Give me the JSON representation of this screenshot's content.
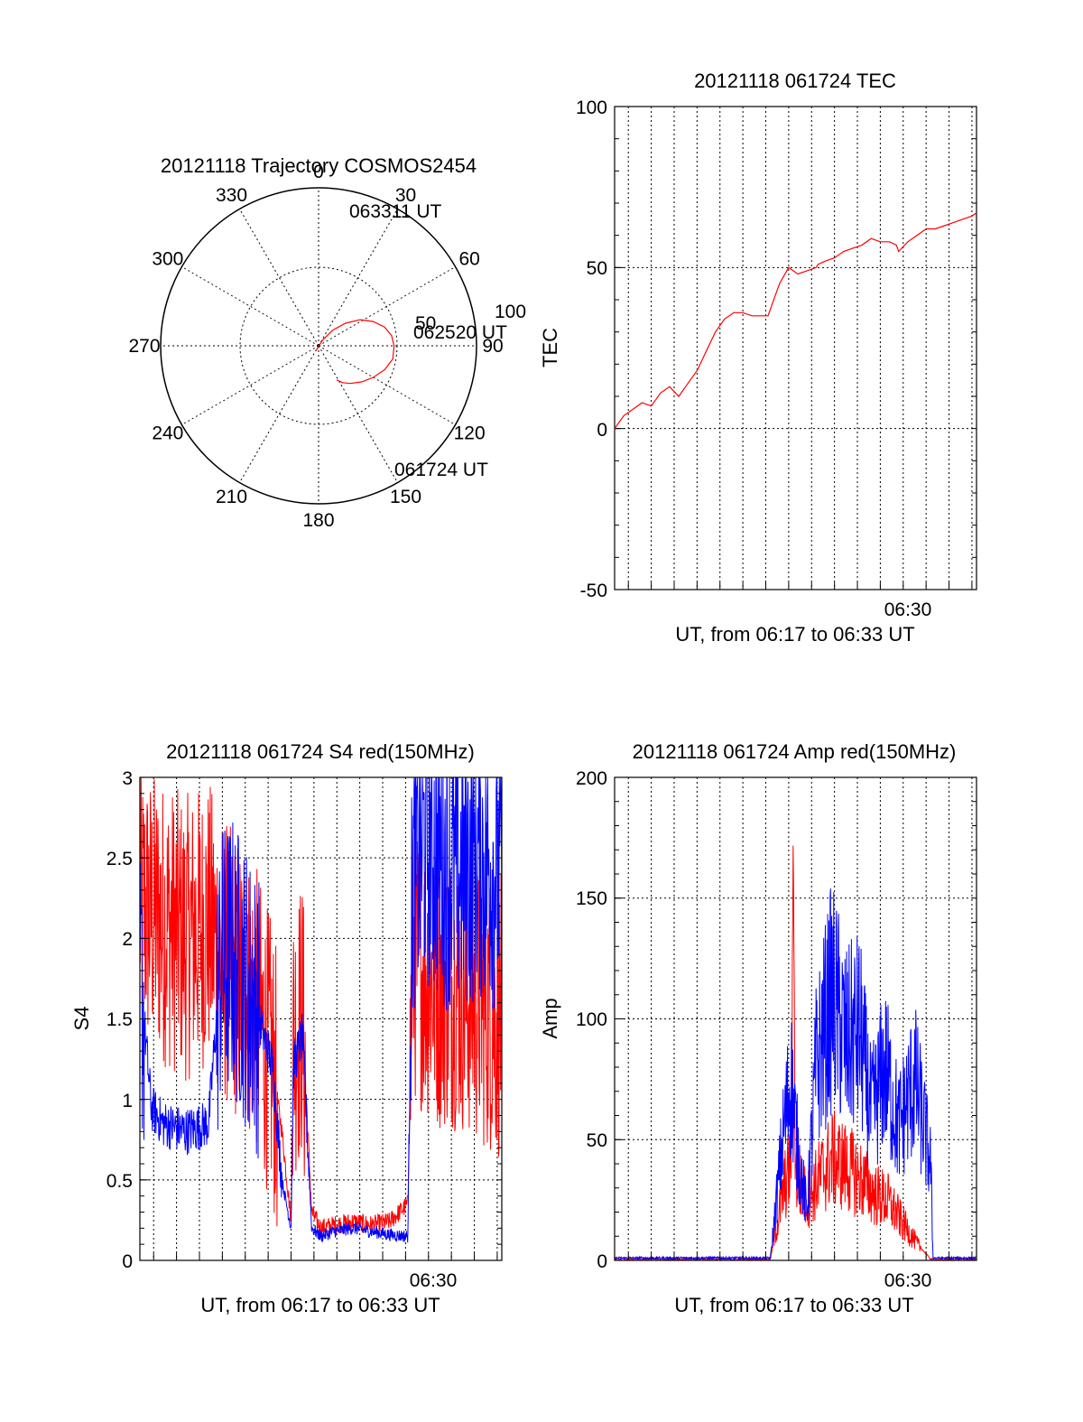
{
  "chart_data": [
    {
      "type": "polar",
      "title": "20121118 Trajectory COSMOS2454",
      "angle_labels": [
        "0",
        "30",
        "60",
        "90",
        "120",
        "150",
        "180",
        "210",
        "240",
        "270",
        "300",
        "330"
      ],
      "radial_labels": [
        "50",
        "100"
      ],
      "trajectory": [
        [
          28,
          93
        ],
        [
          35,
          86
        ],
        [
          42,
          78
        ],
        [
          50,
          70
        ],
        [
          58,
          62
        ],
        [
          66,
          56
        ],
        [
          74,
          51
        ],
        [
          82,
          48
        ],
        [
          90,
          47
        ],
        [
          100,
          47
        ],
        [
          110,
          50
        ],
        [
          120,
          54
        ],
        [
          130,
          58
        ],
        [
          140,
          62
        ],
        [
          147,
          65
        ],
        [
          152,
          68
        ]
      ],
      "annotations": [
        "063311 UT",
        "062520 UT",
        "061724 UT"
      ],
      "colors": {
        "trajectory": "#ff0000"
      }
    },
    {
      "type": "line",
      "title": "20121118 061724 TEC",
      "ylabel": "TEC",
      "xlabel": "UT, from 06:17 to 06:33 UT",
      "ylim": [
        -50,
        100
      ],
      "yticks": [
        "100",
        "50",
        "0",
        "-50"
      ],
      "xticks": [
        "06:30"
      ],
      "x_range_minutes": [
        17.4,
        33.2
      ],
      "series": [
        {
          "color": "#ff0000",
          "x": [
            17.4,
            17.8,
            18.2,
            18.6,
            19.0,
            19.4,
            19.8,
            20.2,
            20.6,
            21.0,
            21.4,
            21.8,
            22.2,
            22.6,
            23.0,
            23.4,
            23.8,
            24.1,
            24.6,
            25.0,
            25.4,
            25.8,
            26.2,
            26.28,
            26.6,
            27.0,
            27.4,
            27.8,
            28.2,
            28.6,
            29.0,
            29.4,
            29.7,
            29.8,
            30.2,
            30.6,
            31.0,
            31.4,
            31.8,
            32.2,
            32.6,
            33.0,
            33.2
          ],
          "values": [
            0,
            4,
            6,
            8,
            7,
            11,
            13,
            10,
            14,
            18,
            24,
            30,
            34,
            36,
            36,
            35,
            35,
            35,
            45,
            50,
            48,
            49,
            50,
            51,
            52,
            53,
            55,
            56,
            57,
            59,
            58,
            58,
            57,
            55,
            58,
            60,
            62,
            62,
            63,
            64,
            65,
            66,
            67
          ]
        }
      ]
    },
    {
      "type": "line",
      "title": "20121118 061724 S4 red(150MHz)",
      "ylabel": "S4",
      "xlabel": "UT, from 06:17 to 06:33 UT",
      "ylim": [
        0,
        3
      ],
      "yticks": [
        "3",
        "2.5",
        "2",
        "1.5",
        "1",
        "0.5",
        "0"
      ],
      "xticks": [
        "06:30"
      ],
      "x_range_minutes": [
        17.4,
        33.2
      ],
      "series": [
        {
          "color": "#ff0000",
          "x": [
            17.4,
            18.4,
            19.4,
            20.4,
            20.9,
            21.4,
            22.4,
            23.2,
            23.6,
            24.0,
            24.1,
            24.5,
            24.9,
            25.3,
            25.9,
            26.7,
            27.5,
            28.3,
            29.1,
            29.3,
            29.8,
            30.4,
            31.2,
            32.2,
            33.2
          ],
          "values": [
            2.2,
            2.1,
            2.0,
            2.1,
            1.9,
            1.8,
            1.6,
            1.2,
            0.8,
            0.25,
            1.4,
            1.5,
            0.3,
            0.2,
            0.22,
            0.24,
            0.22,
            0.24,
            0.35,
            1.9,
            1.8,
            1.7,
            1.7,
            1.6,
            1.5
          ]
        },
        {
          "color": "#0000ff",
          "x": [
            17.4,
            17.9,
            18.4,
            19.4,
            20.4,
            20.9,
            21.4,
            22.4,
            23.2,
            23.6,
            24.0,
            24.1,
            24.5,
            24.9,
            25.3,
            25.9,
            26.7,
            27.5,
            28.3,
            29.1,
            29.3,
            29.8,
            30.4,
            31.2,
            32.2,
            33.2
          ],
          "values": [
            1.8,
            0.95,
            0.85,
            0.8,
            0.85,
            1.8,
            1.9,
            1.6,
            1.2,
            0.5,
            0.2,
            1.2,
            1.4,
            0.2,
            0.15,
            0.18,
            0.2,
            0.18,
            0.16,
            0.15,
            2.4,
            2.6,
            2.5,
            2.4,
            2.5,
            2.4
          ]
        }
      ]
    },
    {
      "type": "line",
      "title": "20121118 061724 Amp red(150MHz)",
      "ylabel": "Amp",
      "xlabel": "UT, from 06:17 to 06:33 UT",
      "ylim": [
        0,
        200
      ],
      "yticks": [
        "200",
        "150",
        "100",
        "50",
        "0"
      ],
      "xticks": [
        "06:30"
      ],
      "x_range_minutes": [
        17.4,
        33.2
      ],
      "series": [
        {
          "color": "#ff0000",
          "x": [
            17.4,
            20.0,
            23.2,
            24.2,
            24.8,
            25.1,
            25.2,
            25.3,
            25.8,
            26.4,
            26.9,
            27.6,
            28.2,
            28.8,
            29.3,
            29.8,
            30.6,
            31.2,
            31.3,
            32.2,
            33.2
          ],
          "values": [
            0.5,
            0.5,
            0.5,
            0.5,
            30,
            40,
            175,
            35,
            25,
            35,
            42,
            38,
            33,
            27,
            25,
            18,
            7,
            0.5,
            0.3,
            0.5,
            0.5
          ]
        },
        {
          "color": "#0000ff",
          "x": [
            17.4,
            20.0,
            23.2,
            24.2,
            24.8,
            25.1,
            25.4,
            25.8,
            26.2,
            26.9,
            27.5,
            28.1,
            28.6,
            29.2,
            29.8,
            30.5,
            31.2,
            31.3,
            32.2,
            33.2
          ],
          "values": [
            1,
            1,
            1,
            1,
            55,
            75,
            45,
            20,
            80,
            110,
            90,
            95,
            60,
            80,
            55,
            75,
            40,
            1,
            1,
            1
          ]
        }
      ]
    }
  ]
}
